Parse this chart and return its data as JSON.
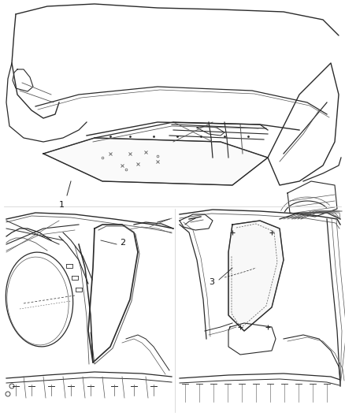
{
  "background_color": "#ffffff",
  "fig_width": 4.38,
  "fig_height": 5.33,
  "dpi": 100,
  "label_fontsize": 8,
  "label_color": "#111111",
  "line_color": "#2a2a2a",
  "light_line": "#555555",
  "very_light": "#888888"
}
